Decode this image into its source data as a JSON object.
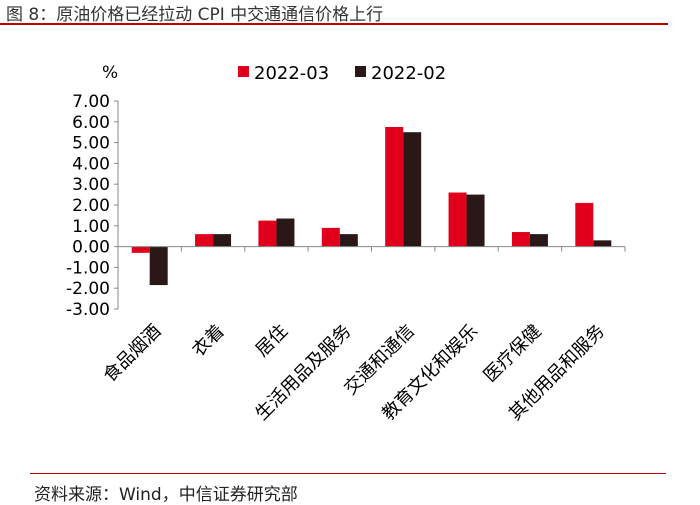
{
  "header": {
    "title": "图 8：原油价格已经拉动 CPI 中交通通信价格上行"
  },
  "footer": {
    "source": "资料来源：Wind，中信证券研究部"
  },
  "chart_data": {
    "type": "bar",
    "title": "",
    "ylabel": "%",
    "ylim": [
      -3,
      7
    ],
    "yticks": [
      "7.00",
      "6.00",
      "5.00",
      "4.00",
      "3.00",
      "2.00",
      "1.00",
      "0.00",
      "-1.00",
      "-2.00",
      "-3.00"
    ],
    "categories": [
      "食品烟酒",
      "衣着",
      "居住",
      "生活用品及服务",
      "交通和通信",
      "教育文化和娱乐",
      "医疗保健",
      "其他用品和服务"
    ],
    "series": [
      {
        "name": "2022-03",
        "color": "#e0001b",
        "values": [
          -0.3,
          0.6,
          1.25,
          0.9,
          5.75,
          2.6,
          0.7,
          2.1
        ]
      },
      {
        "name": "2022-02",
        "color": "#2a1818",
        "values": [
          -1.85,
          0.6,
          1.35,
          0.6,
          5.5,
          2.5,
          0.6,
          0.3
        ]
      }
    ],
    "legend_position": "top",
    "grid": false
  }
}
